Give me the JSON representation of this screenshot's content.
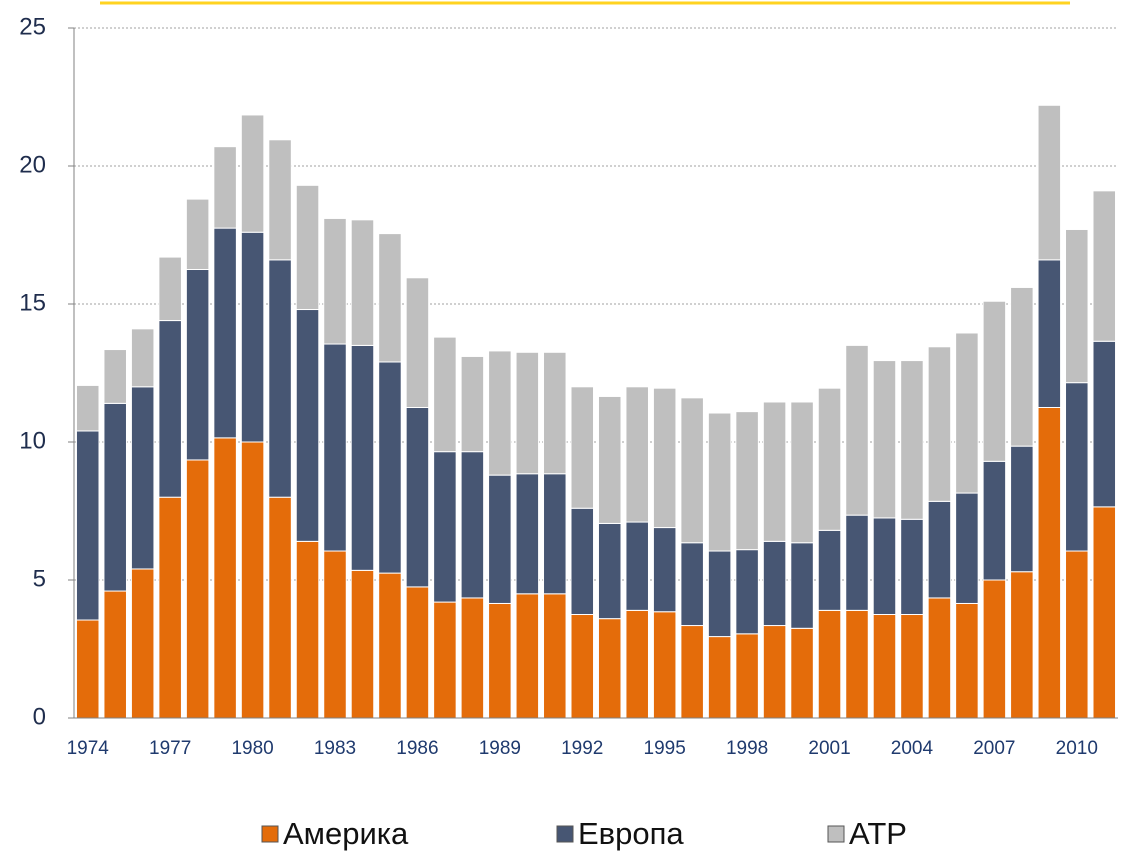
{
  "chart_data": {
    "type": "stacked_bar",
    "categories": [
      "1974",
      null,
      null,
      "1977",
      null,
      null,
      "1980",
      null,
      null,
      "1983",
      null,
      null,
      "1986",
      null,
      null,
      "1989",
      null,
      null,
      "1992",
      null,
      null,
      "1995",
      null,
      null,
      "1998",
      null,
      null,
      "2001",
      null,
      null,
      "2004",
      null,
      null,
      "2007",
      null,
      null,
      "2010",
      null
    ],
    "series": [
      {
        "name": "Америка",
        "color": "#e46c0a",
        "values": [
          3.55,
          4.6,
          5.4,
          8.0,
          9.35,
          10.15,
          10.0,
          8.0,
          6.4,
          6.05,
          5.35,
          5.25,
          4.75,
          4.2,
          4.35,
          4.15,
          4.5,
          4.5,
          3.75,
          3.6,
          3.9,
          3.85,
          3.35,
          2.95,
          3.05,
          3.35,
          3.25,
          3.9,
          3.9,
          3.75,
          3.75,
          4.35,
          4.15,
          5.0,
          5.3,
          11.25,
          6.05,
          7.65
        ]
      },
      {
        "name": "Европа",
        "color": "#475673",
        "values": [
          6.85,
          6.8,
          6.6,
          6.4,
          6.9,
          7.6,
          7.6,
          8.6,
          8.4,
          7.5,
          8.15,
          7.65,
          6.5,
          5.45,
          5.3,
          4.65,
          4.35,
          4.35,
          3.85,
          3.45,
          3.2,
          3.05,
          3.0,
          3.1,
          3.05,
          3.05,
          3.1,
          2.9,
          3.45,
          3.5,
          3.45,
          3.5,
          4.0,
          4.3,
          4.55,
          5.35,
          6.1,
          6.0
        ]
      },
      {
        "name": "ATP",
        "color": "#bfbfbf",
        "values": [
          1.65,
          1.95,
          2.1,
          2.3,
          2.55,
          2.95,
          4.25,
          4.35,
          4.5,
          4.55,
          4.55,
          4.65,
          4.7,
          4.15,
          3.45,
          4.5,
          4.4,
          4.4,
          4.4,
          4.6,
          4.9,
          5.05,
          5.25,
          5.0,
          5.0,
          5.05,
          5.1,
          5.15,
          6.15,
          5.7,
          5.75,
          5.6,
          5.8,
          5.8,
          5.75,
          5.6,
          5.55,
          5.45
        ]
      }
    ],
    "ylim": [
      0,
      25
    ],
    "yticks": [
      0,
      5,
      10,
      15,
      20,
      25
    ],
    "grid": true
  }
}
